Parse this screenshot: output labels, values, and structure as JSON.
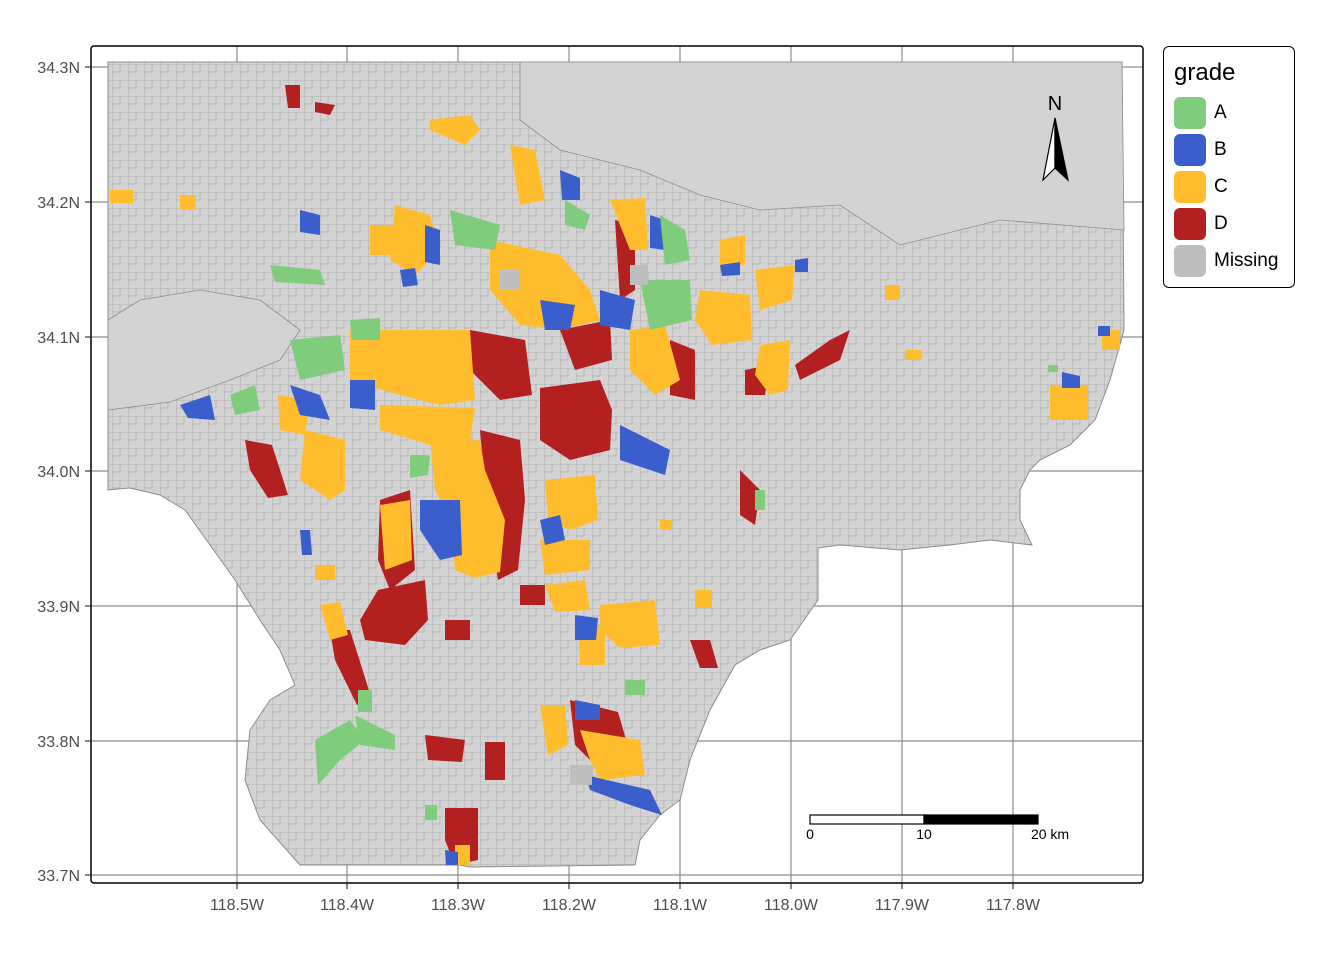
{
  "legend": {
    "title": "grade",
    "items": [
      {
        "label": "A",
        "color": "#7fcd7c"
      },
      {
        "label": "B",
        "color": "#3a5fcd"
      },
      {
        "label": "C",
        "color": "#ffbd2e"
      },
      {
        "label": "D",
        "color": "#b2201f"
      },
      {
        "label": "Missing",
        "color": "#bebebe"
      }
    ]
  },
  "axes": {
    "x_ticks": [
      "118.5W",
      "118.4W",
      "118.3W",
      "118.2W",
      "118.1W",
      "118.0W",
      "117.9W",
      "117.8W"
    ],
    "y_ticks": [
      "34.3N",
      "34.2N",
      "34.1N",
      "34.0N",
      "33.9N",
      "33.8N",
      "33.7N"
    ],
    "x_range": [
      -118.6,
      -117.7
    ],
    "y_range": [
      33.7,
      34.3
    ]
  },
  "north_arrow": {
    "label": "N"
  },
  "scale_bar": {
    "labels": [
      "0",
      "10",
      "20 km"
    ]
  },
  "colors": {
    "land": "#d3d3d3",
    "borders": "#8c8c8c",
    "grid": "#8c8c8c"
  }
}
